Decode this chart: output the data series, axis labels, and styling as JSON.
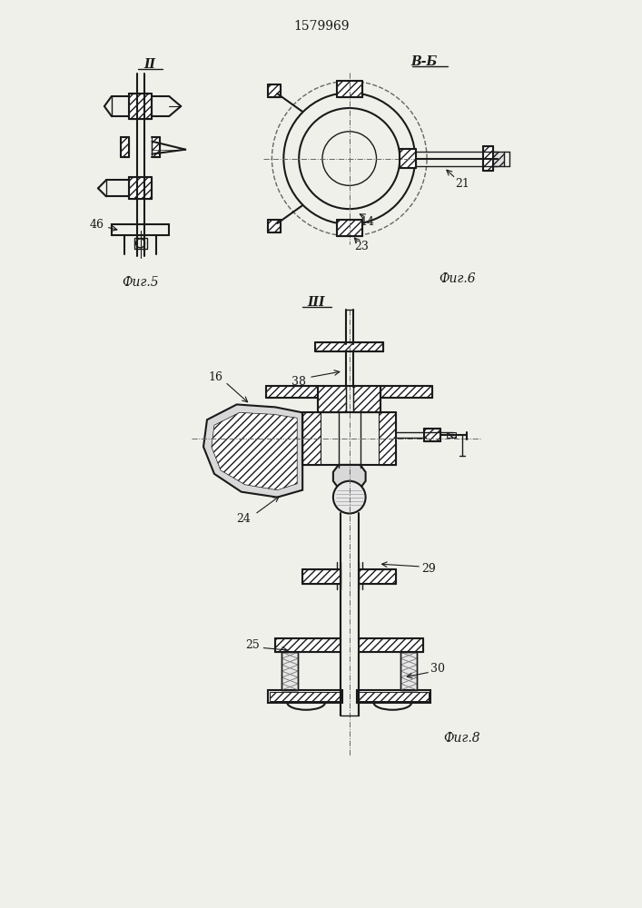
{
  "title": "1579969",
  "bg_color": "#f0f0eb",
  "line_color": "#1a1a1a",
  "fig_width": 7.07,
  "fig_height": 10.0,
  "labels": {
    "title": "1579969",
    "fig5_label": "Фиг.5",
    "fig6_label": "Фиг.6",
    "fig8_label": "Фиг.8",
    "view_II": "II",
    "view_BB": "В-Б",
    "view_III": "III",
    "num_46": "46",
    "num_14": "14",
    "num_23": "23",
    "num_21": "21",
    "num_16": "16",
    "num_24": "24",
    "num_25": "25",
    "num_29": "29",
    "num_30": "30",
    "num_38": "38"
  }
}
